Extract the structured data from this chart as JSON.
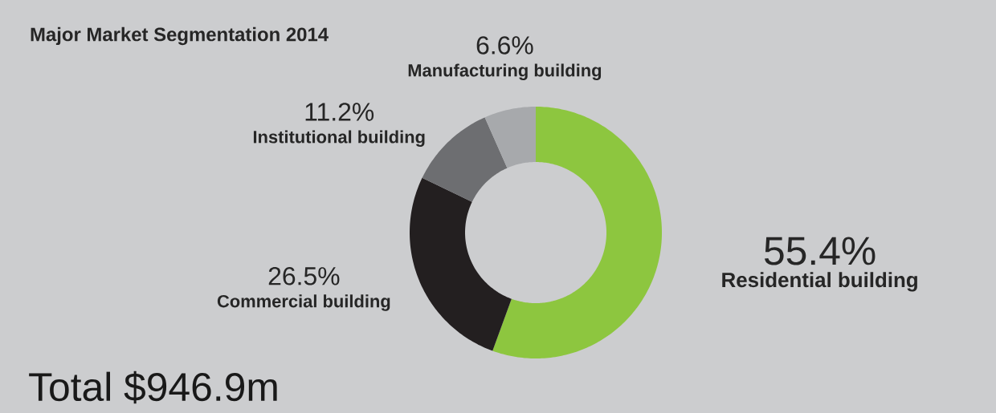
{
  "chart_data": {
    "type": "donut",
    "title": "Major Market Segmentation 2014",
    "categories": [
      "Residential building",
      "Commercial building",
      "Institutional building",
      "Manufacturing building"
    ],
    "values": [
      55.4,
      26.5,
      11.2,
      6.6
    ],
    "colors": [
      "#8dc63f",
      "#231f20",
      "#6d6e71",
      "#a7a9ac"
    ],
    "value_labels": [
      "55.4%",
      "26.5%",
      "11.2%",
      "6.6%"
    ],
    "annotations": [
      "Total $946.9m"
    ]
  }
}
